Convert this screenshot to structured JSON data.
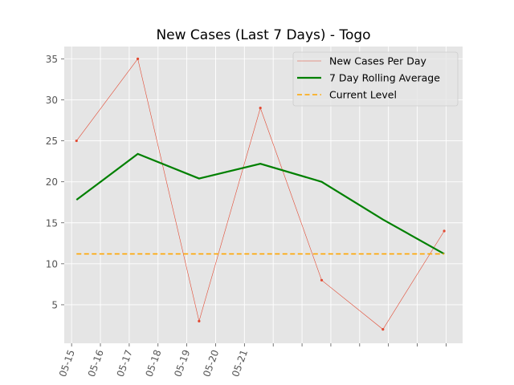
{
  "chart_data": {
    "type": "line",
    "title": "New Cases (Last 7 Days) - Togo",
    "xlabel": "",
    "ylabel": "",
    "x_tick_labels": [
      "05-15",
      "05-16",
      "05-17",
      "05-18",
      "05-19",
      "05-20",
      "05-21"
    ],
    "xlim": [
      -0.2,
      6.3
    ],
    "ylim": [
      0.3,
      36.5
    ],
    "y_ticks": [
      5,
      10,
      15,
      20,
      25,
      30,
      35
    ],
    "grid": true,
    "legend_position": "top-right",
    "series": [
      {
        "name": "New Cases Per Day",
        "color": "#E24A33",
        "x": [
          0,
          1,
          2,
          3,
          4,
          5,
          6
        ],
        "values": [
          25,
          35,
          3,
          29,
          8,
          2,
          14
        ]
      },
      {
        "name": "7 Day Rolling Average",
        "color": "#008000",
        "x": [
          0,
          1,
          2,
          3,
          4,
          5,
          6
        ],
        "values": [
          17.8,
          23.4,
          20.4,
          22.2,
          20.0,
          15.4,
          11.2
        ]
      },
      {
        "name": "Current Level",
        "color": "#FFA500",
        "style": "dashed",
        "x": [
          0,
          6
        ],
        "values": [
          11.2,
          11.2
        ]
      }
    ]
  }
}
